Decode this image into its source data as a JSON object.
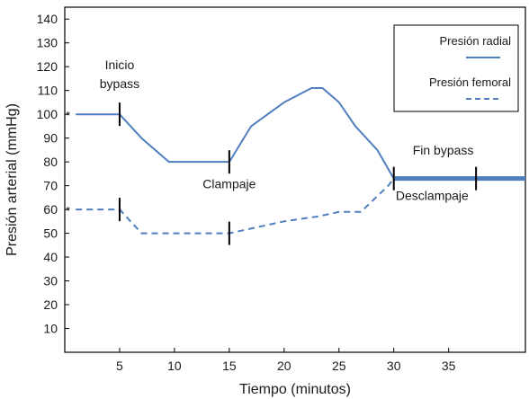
{
  "chart_data": {
    "type": "line",
    "title": "",
    "xlabel": "Tiempo (minutos)",
    "ylabel": "Presión arterial (mmHg)",
    "xlim": [
      0,
      42
    ],
    "ylim": [
      0,
      145
    ],
    "x_ticks": [
      5,
      10,
      15,
      20,
      25,
      30,
      35
    ],
    "y_ticks": [
      10,
      20,
      30,
      40,
      50,
      60,
      70,
      80,
      90,
      100,
      110,
      120,
      130,
      140
    ],
    "grid": false,
    "legend": "top-right",
    "series": [
      {
        "name": "Presión radial",
        "style": "solid",
        "color": "#4f7fbf",
        "points": [
          [
            1,
            100
          ],
          [
            5,
            100
          ],
          [
            7,
            90
          ],
          [
            9.5,
            80
          ],
          [
            15,
            80
          ],
          [
            17,
            95
          ],
          [
            20,
            105
          ],
          [
            22.5,
            111
          ],
          [
            23.5,
            111
          ],
          [
            25,
            105
          ],
          [
            26.5,
            95
          ],
          [
            28.5,
            85
          ],
          [
            30,
            73
          ],
          [
            42,
            73
          ]
        ]
      },
      {
        "name": "Presión femoral",
        "style": "dashed",
        "color": "#4f7fbf",
        "points": [
          [
            1,
            60
          ],
          [
            5,
            60
          ],
          [
            7,
            50
          ],
          [
            10,
            50
          ],
          [
            15,
            50
          ],
          [
            20,
            55
          ],
          [
            23,
            57
          ],
          [
            25,
            59
          ],
          [
            27,
            59
          ],
          [
            29.5,
            70
          ],
          [
            30,
            73
          ]
        ]
      }
    ],
    "event_marks": [
      {
        "x": 5,
        "y": 100
      },
      {
        "x": 5,
        "y": 60
      },
      {
        "x": 15,
        "y": 80
      },
      {
        "x": 15,
        "y": 50
      },
      {
        "x": 30,
        "y": 73
      },
      {
        "x": 37.5,
        "y": 73
      }
    ],
    "asterisks": [
      {
        "text": "*",
        "x": 0.3,
        "y": 100
      },
      {
        "text": "*",
        "x": 0.3,
        "y": 60
      }
    ],
    "annotations": [
      {
        "text": "Inicio",
        "x": 5,
        "y": 119
      },
      {
        "text": "bypass",
        "x": 5,
        "y": 111
      },
      {
        "text": "Clampaje",
        "x": 15,
        "y": 69
      },
      {
        "text": "Fin bypass",
        "x": 34.5,
        "y": 83
      },
      {
        "text": "Desclampaje",
        "x": 33.5,
        "y": 64
      }
    ]
  }
}
